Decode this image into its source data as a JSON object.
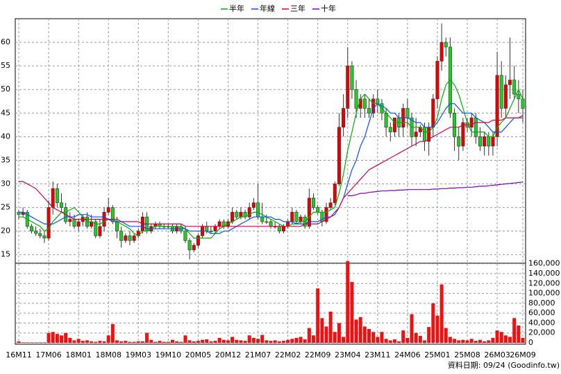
{
  "chart_data": {
    "type": "candlestick",
    "footer": "資料日期: 09/24  (Goodinfo.tw)",
    "categories": [
      "16M11",
      null,
      null,
      null,
      null,
      null,
      null,
      "17M06",
      null,
      null,
      null,
      null,
      null,
      null,
      "18M01",
      null,
      null,
      null,
      null,
      null,
      null,
      "18M08",
      null,
      null,
      null,
      null,
      null,
      null,
      "19M03",
      null,
      null,
      null,
      null,
      null,
      null,
      "19M10",
      null,
      null,
      null,
      null,
      null,
      null,
      "20M05",
      null,
      null,
      null,
      null,
      null,
      null,
      "20M12",
      null,
      null,
      null,
      null,
      null,
      null,
      "21M07",
      null,
      null,
      null,
      null,
      null,
      null,
      "22M02",
      null,
      null,
      null,
      null,
      null,
      null,
      "22M09",
      null,
      null,
      null,
      null,
      null,
      null,
      "23M04",
      null,
      null,
      null,
      null,
      null,
      null,
      "23M11",
      null,
      null,
      null,
      null,
      null,
      null,
      "24M06",
      null,
      null,
      null,
      null,
      null,
      null,
      "25M01",
      null,
      null,
      null,
      null,
      null,
      null,
      "25M08",
      null,
      null,
      null,
      null,
      null,
      null,
      "26M03",
      null,
      null,
      null,
      null,
      null,
      "26M09"
    ],
    "open": [
      24,
      23.5,
      24,
      21,
      20,
      19.5,
      19,
      18.5,
      25,
      29,
      26,
      25,
      22,
      22.5,
      21,
      22,
      23,
      21,
      22,
      19,
      21,
      24,
      25,
      22,
      20,
      18,
      19,
      18,
      19,
      20,
      23,
      20,
      21,
      21.5,
      21,
      21,
      21,
      20,
      21,
      20,
      18,
      16,
      17,
      19,
      21,
      20,
      20,
      21,
      22,
      21,
      22,
      24,
      23,
      24,
      23,
      25,
      26,
      23,
      22,
      22,
      21,
      21,
      20,
      21,
      22,
      24,
      22,
      23,
      21,
      27,
      25,
      24,
      22,
      25,
      26,
      30,
      42,
      46,
      55,
      50,
      46,
      48,
      46,
      45,
      48,
      47,
      45,
      42,
      41,
      44,
      42,
      46,
      44,
      40,
      41,
      42,
      39,
      42,
      48,
      56,
      60,
      59,
      45,
      40,
      38,
      43,
      42,
      44,
      40,
      38,
      40,
      38,
      40,
      53,
      46,
      51,
      52,
      49,
      48
    ],
    "high": [
      24.5,
      25,
      24.5,
      21.5,
      21,
      20.5,
      20,
      26.5,
      30.5,
      30,
      28,
      26,
      24,
      23.5,
      22.5,
      23.5,
      24,
      23.5,
      22.5,
      22.5,
      25,
      27,
      25.5,
      23,
      21,
      19.5,
      20,
      19.5,
      20.5,
      24,
      24,
      21.5,
      22,
      22,
      21.5,
      21.5,
      21.5,
      21.5,
      21.5,
      21,
      18.5,
      17.5,
      19.5,
      21.5,
      22,
      21,
      21.5,
      22.5,
      22.5,
      22.5,
      25,
      24.5,
      25,
      24.5,
      26,
      27,
      30,
      26,
      23.5,
      22.5,
      22,
      21.5,
      21.5,
      22.5,
      25,
      24.5,
      23.5,
      23.5,
      29,
      28,
      25.5,
      24.5,
      26,
      27,
      30.5,
      45,
      49,
      59,
      56,
      52,
      49,
      49,
      48,
      49,
      50,
      48,
      46,
      43,
      44,
      45,
      47,
      48,
      45,
      44,
      42.5,
      43,
      43,
      49,
      57,
      64,
      61,
      61,
      46,
      42,
      44,
      44,
      45,
      45,
      42,
      41,
      41,
      41,
      58,
      56,
      53,
      61,
      55,
      52,
      50
    ],
    "low": [
      22.5,
      23,
      20.5,
      19.5,
      19,
      18.5,
      17.5,
      18,
      23.5,
      25,
      24,
      21.5,
      21,
      20.5,
      20,
      21,
      20.5,
      20.5,
      18.5,
      18.5,
      20,
      23.5,
      21.5,
      18.5,
      16.5,
      17.5,
      17,
      17.5,
      18.5,
      19.5,
      19.5,
      19.5,
      20.5,
      20.5,
      20.5,
      20.5,
      19.5,
      19.5,
      19.5,
      17.5,
      14,
      15.5,
      16.5,
      18.5,
      19.5,
      19.5,
      19.5,
      20.5,
      20.5,
      20.5,
      21.5,
      22.5,
      22.5,
      22.5,
      22.5,
      24.5,
      22.5,
      21.5,
      21.5,
      20.5,
      20.5,
      19.5,
      19.5,
      20.5,
      21.5,
      21.5,
      21.5,
      20.5,
      20.5,
      24.5,
      23.5,
      21,
      21.5,
      24.5,
      25.5,
      29.5,
      40,
      44,
      48,
      44,
      44,
      44,
      44,
      44,
      45,
      43.5,
      40,
      39,
      40,
      40,
      40,
      42,
      38,
      38,
      40,
      37,
      36,
      40,
      46,
      54,
      57,
      44,
      37,
      35,
      37,
      41,
      40,
      38.5,
      37,
      36,
      36,
      36,
      38,
      44,
      44,
      48,
      48,
      45,
      43
    ],
    "close": [
      23.5,
      24,
      21,
      20,
      19.5,
      19,
      18.5,
      25,
      29,
      26,
      25,
      22,
      22.5,
      21,
      22,
      23,
      21,
      22,
      19,
      21,
      24,
      25,
      22,
      20,
      18,
      19,
      18,
      19,
      20,
      23,
      20,
      21,
      21.5,
      21,
      21,
      21,
      20,
      21,
      20,
      18,
      16,
      17,
      19,
      21,
      20,
      20,
      21,
      22,
      21,
      22,
      24,
      23,
      24,
      23,
      25,
      26,
      23,
      22,
      22,
      21,
      21,
      20,
      21,
      22,
      24,
      22,
      23,
      21,
      27,
      25,
      24,
      22,
      25,
      26,
      30,
      42,
      46,
      55,
      50,
      46,
      48,
      46,
      45,
      48,
      47,
      45,
      42,
      41,
      44,
      42,
      46,
      44,
      40,
      41,
      42,
      39,
      42,
      48,
      56,
      60,
      59,
      45,
      40,
      38,
      43,
      42,
      44,
      40,
      38,
      40,
      38,
      40,
      53,
      46,
      51,
      52,
      49,
      48,
      46
    ],
    "volume": [
      3000,
      1000,
      1000,
      1000,
      1000,
      1000,
      1000,
      20000,
      22000,
      18000,
      15000,
      20000,
      10000,
      5000,
      8000,
      4000,
      5000,
      3000,
      2000,
      4000,
      3000,
      15000,
      38000,
      5000,
      3000,
      4000,
      2000,
      2000,
      3000,
      3000,
      20000,
      6000,
      2000,
      4000,
      2000,
      2000,
      6000,
      3000,
      2000,
      15000,
      5000,
      3000,
      4000,
      6000,
      7000,
      3000,
      4000,
      10000,
      6000,
      5000,
      12000,
      6000,
      5000,
      4000,
      15000,
      10000,
      8000,
      16000,
      5000,
      4000,
      5000,
      3000,
      4000,
      6000,
      8000,
      10000,
      12000,
      7000,
      30000,
      15000,
      110000,
      50000,
      33000,
      63000,
      22000,
      40000,
      12000,
      165000,
      123000,
      47000,
      52000,
      33000,
      28000,
      22000,
      12000,
      22000,
      8000,
      5000,
      7000,
      3000,
      25000,
      10000,
      58000,
      20000,
      14000,
      5000,
      32000,
      80000,
      55000,
      118000,
      30000,
      12000,
      8000,
      5000,
      6000,
      5000,
      8000,
      4000,
      6000,
      3000,
      5000,
      10000,
      25000,
      22000,
      15000,
      12000,
      50000,
      35000,
      10000
    ],
    "up_color": "#e80000",
    "down_color": "#22cc22",
    "volume_color": "#ee1111",
    "series": [
      {
        "name": "半年",
        "color": "#00b000",
        "values": [
          23,
          23,
          22.5,
          22,
          21.5,
          21,
          20,
          20.5,
          22,
          23,
          24,
          24,
          24.5,
          25,
          24,
          23,
          22,
          22,
          21.5,
          21.5,
          22,
          22.5,
          22.5,
          22,
          21.5,
          21,
          20.5,
          19.5,
          19,
          20,
          20,
          20.5,
          21,
          21,
          21,
          21,
          21,
          21,
          21,
          20.5,
          19.5,
          18.5,
          18.5,
          18.5,
          18.5,
          18.5,
          19.5,
          20.5,
          21,
          21.5,
          22,
          22.5,
          23,
          23,
          23.5,
          24,
          24,
          23.5,
          23,
          22.5,
          22,
          21.5,
          21,
          21,
          21.5,
          21.5,
          22,
          22,
          23,
          24,
          24,
          24,
          24,
          24.5,
          25,
          28,
          32,
          37,
          41,
          45,
          48,
          49,
          48,
          47,
          47,
          46,
          45,
          44,
          43,
          43,
          43,
          43,
          42,
          42,
          42,
          41,
          41,
          42,
          44,
          48,
          51,
          52,
          51,
          49,
          46,
          43,
          41,
          41,
          41,
          41,
          40,
          40,
          42,
          43,
          44,
          46,
          48,
          50,
          48
        ]
      },
      {
        "name": "年線",
        "color": "#0050ff",
        "values": [
          24,
          24,
          23.5,
          23,
          22.5,
          22,
          21.5,
          21.5,
          21.5,
          22,
          22.5,
          23,
          23,
          23,
          23.5,
          23.5,
          23.5,
          23,
          23,
          23,
          23,
          22.5,
          22,
          22,
          22,
          21.5,
          21,
          21,
          21,
          21,
          20.5,
          20.5,
          20.5,
          20.5,
          20.5,
          20.5,
          20.5,
          20.5,
          20.5,
          20.5,
          20,
          20,
          20,
          20,
          20,
          19.5,
          19.5,
          19.5,
          20,
          20,
          20.5,
          21,
          21.5,
          22,
          22.5,
          23,
          23,
          23,
          23,
          23,
          22.5,
          22.5,
          22,
          22,
          22,
          21.5,
          21.5,
          21.5,
          22,
          22,
          22,
          22.5,
          23,
          23,
          23.5,
          25,
          27,
          30,
          33,
          35,
          38,
          40,
          43,
          46,
          47,
          46.5,
          46,
          45,
          45,
          44,
          44,
          44,
          43.5,
          43,
          43,
          42,
          42,
          42,
          43,
          44.5,
          46,
          47,
          47,
          46,
          45,
          45,
          45,
          44,
          43.5,
          43,
          42,
          41,
          41,
          41,
          42,
          43,
          44,
          44,
          44
        ]
      },
      {
        "name": "三年",
        "color": "#d0004a",
        "values": [
          30.5,
          30.5,
          30,
          29.5,
          29,
          28,
          27,
          26,
          25,
          24.5,
          24,
          23.5,
          23,
          22.5,
          22.5,
          22.5,
          22.5,
          22.5,
          22.5,
          22.5,
          22.5,
          22.5,
          22.5,
          22.5,
          22,
          22,
          22,
          22,
          22,
          21.5,
          21.5,
          21.5,
          21.5,
          21.5,
          21.5,
          21.5,
          21.5,
          21.5,
          21.5,
          21,
          21,
          21,
          21,
          21,
          21,
          21,
          21,
          21,
          21,
          21,
          21,
          21,
          21,
          21,
          21,
          21,
          21,
          21,
          21,
          21,
          21,
          21,
          21,
          21,
          21,
          21,
          21,
          21.5,
          21.5,
          21.5,
          21.5,
          22,
          22.5,
          23,
          24,
          25,
          27,
          28,
          29,
          30,
          31,
          32,
          33,
          33.5,
          34,
          34.5,
          35,
          35.5,
          36,
          36.5,
          37,
          37.5,
          38,
          38.5,
          39,
          39,
          39.5,
          40,
          40.5,
          41,
          41.5,
          42,
          42,
          42,
          42.5,
          42.5,
          42.5,
          43,
          43,
          43,
          43,
          43.5,
          43.5,
          43.5,
          44,
          44,
          44,
          44,
          44.5
        ]
      },
      {
        "name": "十年",
        "color": "#8000c0",
        "values": [
          null,
          null,
          null,
          null,
          null,
          null,
          null,
          null,
          null,
          null,
          null,
          null,
          null,
          null,
          null,
          null,
          null,
          null,
          null,
          null,
          null,
          null,
          null,
          null,
          null,
          null,
          null,
          null,
          null,
          null,
          null,
          null,
          null,
          null,
          null,
          null,
          null,
          null,
          null,
          null,
          null,
          null,
          null,
          null,
          null,
          null,
          null,
          null,
          null,
          null,
          null,
          null,
          null,
          null,
          null,
          null,
          null,
          null,
          null,
          null,
          null,
          null,
          null,
          null,
          null,
          null,
          null,
          null,
          null,
          null,
          null,
          null,
          null,
          null,
          null,
          null,
          null,
          27.5,
          27.5,
          27.7,
          28,
          28,
          28.2,
          28.3,
          28.4,
          28.5,
          28.5,
          28.6,
          28.6,
          28.7,
          28.7,
          28.8,
          28.8,
          28.8,
          28.8,
          28.8,
          28.8,
          28.9,
          28.9,
          29,
          29,
          29.1,
          29.1,
          29.2,
          29.2,
          29.3,
          29.3,
          29.4,
          29.5,
          29.5,
          29.6,
          29.7,
          29.8,
          29.9,
          30,
          30.1,
          30.2,
          30.3,
          30.4
        ]
      }
    ],
    "ylim": [
      13.2,
      65
    ],
    "yticks": [
      15,
      20,
      25,
      30,
      35,
      40,
      45,
      50,
      55,
      60
    ],
    "y2lim": [
      0,
      161000
    ],
    "y2ticks": [
      0,
      {
        "value": 20000,
        "label": "20,000"
      },
      {
        "value": 40000,
        "label": "40,000"
      },
      {
        "value": 60000,
        "label": "60,000"
      },
      {
        "value": 80000,
        "label": "80,000"
      },
      {
        "value": 100000,
        "label": "100,000"
      },
      {
        "value": 120000,
        "label": "120,000"
      },
      {
        "value": 140000,
        "label": "140,000"
      },
      {
        "value": 160000,
        "label": "160,000"
      }
    ],
    "grid": true,
    "legend": "top"
  }
}
